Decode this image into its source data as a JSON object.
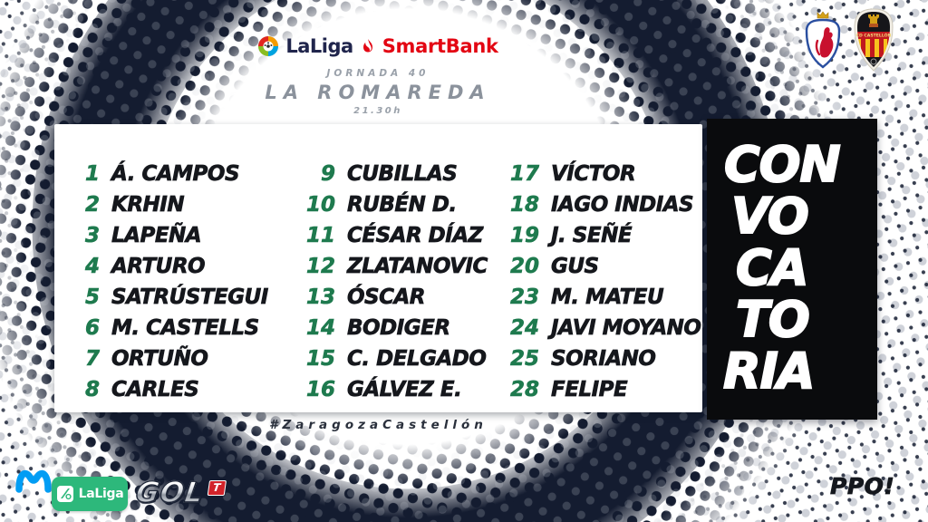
{
  "header": {
    "league_name": "LaLiga",
    "bank_name": "SmartBank",
    "jornada": "JORNADA 40",
    "venue": "LA ROMAREDA",
    "time": "21.30h"
  },
  "crests": {
    "away_label": "CD CASTELLÓN"
  },
  "squad": {
    "columns": [
      {
        "players": [
          {
            "num": "1",
            "name": "Á. CAMPOS"
          },
          {
            "num": "2",
            "name": "KRHIN"
          },
          {
            "num": "3",
            "name": "LAPEÑA"
          },
          {
            "num": "4",
            "name": "ARTURO"
          },
          {
            "num": "5",
            "name": "SATRÚSTEGUI"
          },
          {
            "num": "6",
            "name": "M. CASTELLS"
          },
          {
            "num": "7",
            "name": "ORTUÑO"
          },
          {
            "num": "8",
            "name": "CARLES"
          }
        ]
      },
      {
        "players": [
          {
            "num": "9",
            "name": "CUBILLAS"
          },
          {
            "num": "10",
            "name": "RUBÉN D."
          },
          {
            "num": "11",
            "name": "CÉSAR DÍAZ"
          },
          {
            "num": "12",
            "name": "ZLATANOVIC"
          },
          {
            "num": "13",
            "name": "ÓSCAR"
          },
          {
            "num": "14",
            "name": "BODIGER"
          },
          {
            "num": "15",
            "name": "C. DELGADO"
          },
          {
            "num": "16",
            "name": "GÁLVEZ E."
          }
        ]
      },
      {
        "players": [
          {
            "num": "17",
            "name": "VÍCTOR"
          },
          {
            "num": "18",
            "name": "IAGO INDIAS"
          },
          {
            "num": "19",
            "name": "J. SEÑÉ"
          },
          {
            "num": "20",
            "name": "GUS"
          },
          {
            "num": "23",
            "name": "M. MATEU"
          },
          {
            "num": "24",
            "name": "JAVI MOYANO"
          },
          {
            "num": "25",
            "name": "SORIANO"
          },
          {
            "num": "28",
            "name": "FELIPE"
          }
        ]
      }
    ]
  },
  "convocatoria_lines": [
    "CON",
    "VO",
    "CA",
    "TO",
    "RIA"
  ],
  "hashtag": "#ZaragozaCastellón",
  "sponsors": {
    "laliga_badge": "LaLiga",
    "gol": "GOL",
    "gol_t": "T"
  },
  "signoff": "PPO!",
  "colors": {
    "navy": "#141c30",
    "number_green": "#1e7a4e",
    "smartbank_red": "#e30613",
    "laliga_navy": "#20254c",
    "movistar_blue": "#019df4",
    "laliga_badge_green": "#2db87b",
    "gol_red": "#d2232a",
    "header_gray": "#8b929c"
  }
}
